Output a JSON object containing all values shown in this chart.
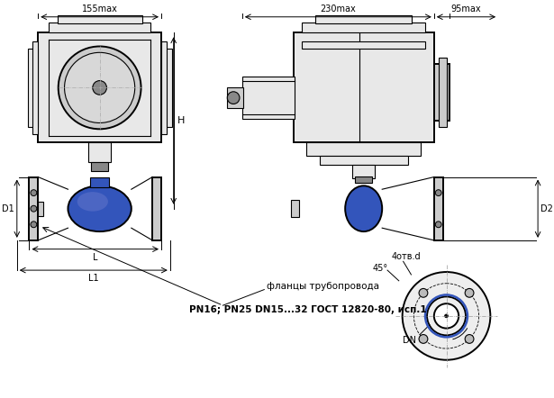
{
  "bg_color": "#ffffff",
  "line_color": "#000000",
  "blue_color": "#3355bb",
  "gray_light": "#e8e8e8",
  "gray_mid": "#cccccc",
  "gray_dark": "#888888",
  "text_155max": "155max",
  "text_230max": "230max",
  "text_95max": "95max",
  "text_H": "H",
  "text_D1": "D1",
  "text_D2": "D2",
  "text_DN": "DN",
  "text_L": "L",
  "text_L1": "L1",
  "text_45": "45°",
  "text_4otv": "4отв.d",
  "text_flange": "фланцы трубопровода",
  "text_gost": "PN16; PN25 DN15...32 ГОСТ 12820-80, исп.1"
}
